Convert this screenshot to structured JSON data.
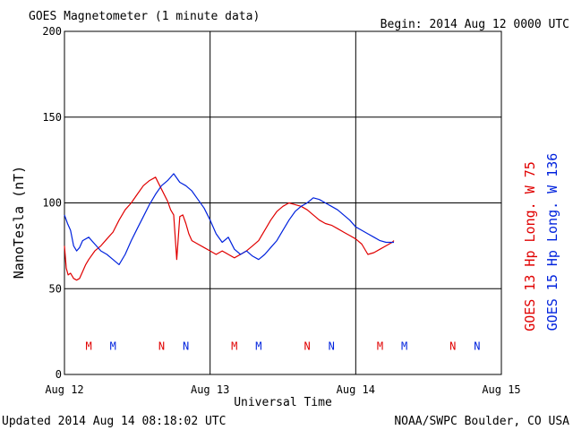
{
  "chart_data": {
    "type": "line",
    "title": "GOES Magnetometer (1 minute data)",
    "begin_label": "Begin:  2014 Aug 12 0000 UTC",
    "xlabel": "Universal Time",
    "ylabel": "NanoTesla (nT)",
    "footer_left": "Updated 2014 Aug 14 08:18:02 UTC",
    "footer_right": "NOAA/SWPC Boulder, CO USA",
    "x_unit": "hours since 2014 Aug 12 00:00 UTC",
    "xlim": [
      0,
      72
    ],
    "ylim": [
      0,
      200
    ],
    "x_ticks": [
      {
        "x": 0,
        "label": "Aug 12"
      },
      {
        "x": 24,
        "label": "Aug 13"
      },
      {
        "x": 48,
        "label": "Aug 14"
      },
      {
        "x": 72,
        "label": "Aug 15"
      }
    ],
    "y_ticks": [
      {
        "y": 0,
        "label": "0"
      },
      {
        "y": 50,
        "label": "50"
      },
      {
        "y": 100,
        "label": "100"
      },
      {
        "y": 150,
        "label": "150"
      },
      {
        "y": 200,
        "label": "200"
      }
    ],
    "grid": true,
    "series": [
      {
        "name": "GOES 13 Hp  Long. W 75",
        "color": "#e00000",
        "x": [
          0,
          0.3,
          0.6,
          1,
          1.5,
          2,
          2.5,
          3,
          3.5,
          4,
          5,
          6,
          7,
          8,
          9,
          10,
          11,
          12,
          13,
          14,
          15,
          16,
          17,
          17.5,
          18,
          18.5,
          19,
          19.5,
          20,
          20.5,
          21,
          22,
          23,
          24,
          25,
          26,
          27,
          28,
          29,
          30,
          31,
          32,
          33,
          34,
          35,
          36,
          37,
          38,
          39,
          40,
          41,
          42,
          43,
          44,
          45,
          46,
          47,
          48,
          49,
          50,
          51,
          52,
          53,
          54,
          54.3
        ],
        "values": [
          75,
          62,
          58,
          59,
          56,
          55,
          56,
          60,
          64,
          67,
          72,
          75,
          79,
          83,
          90,
          96,
          100,
          105,
          110,
          113,
          115,
          108,
          101,
          96,
          93,
          67,
          92,
          93,
          88,
          82,
          78,
          76,
          74,
          72,
          70,
          72,
          70,
          68,
          70,
          72,
          75,
          78,
          84,
          90,
          95,
          98,
          100,
          99,
          98,
          96,
          93,
          90,
          88,
          87,
          85,
          83,
          81,
          79,
          76,
          70,
          71,
          73,
          75,
          77,
          78
        ]
      },
      {
        "name": "GOES 15 Hp  Long. W 136",
        "color": "#0022dd",
        "x": [
          0,
          0.5,
          1,
          1.5,
          2,
          2.5,
          3,
          4,
          5,
          6,
          7,
          8,
          9,
          10,
          11,
          12,
          13,
          14,
          15,
          16,
          17,
          18,
          19,
          20,
          21,
          22,
          23,
          24,
          25,
          26,
          27,
          28,
          29,
          30,
          31,
          32,
          33,
          34,
          35,
          36,
          37,
          38,
          39,
          40,
          41,
          42,
          43,
          44,
          45,
          46,
          47,
          48,
          49,
          50,
          51,
          52,
          53,
          54,
          54.3
        ],
        "values": [
          93,
          88,
          84,
          75,
          72,
          74,
          78,
          80,
          76,
          72,
          70,
          67,
          64,
          70,
          78,
          85,
          92,
          99,
          105,
          110,
          113,
          117,
          112,
          110,
          107,
          102,
          97,
          90,
          82,
          77,
          80,
          73,
          70,
          72,
          69,
          67,
          70,
          74,
          78,
          84,
          90,
          95,
          98,
          100,
          103,
          102,
          100,
          98,
          96,
          93,
          90,
          86,
          84,
          82,
          80,
          78,
          77,
          77,
          77
        ]
      }
    ],
    "right_labels": [
      {
        "text": "GOES 13 Hp  Long. W 75",
        "color": "#e00000"
      },
      {
        "text": "GOES 15 Hp  Long. W 136",
        "color": "#0022dd"
      }
    ],
    "markers_y": 17,
    "markers": [
      {
        "x": 4,
        "label": "M",
        "color": "#e00000"
      },
      {
        "x": 8,
        "label": "M",
        "color": "#0022dd"
      },
      {
        "x": 16,
        "label": "N",
        "color": "#e00000"
      },
      {
        "x": 20,
        "label": "N",
        "color": "#0022dd"
      },
      {
        "x": 28,
        "label": "M",
        "color": "#e00000"
      },
      {
        "x": 32,
        "label": "M",
        "color": "#0022dd"
      },
      {
        "x": 40,
        "label": "N",
        "color": "#e00000"
      },
      {
        "x": 44,
        "label": "N",
        "color": "#0022dd"
      },
      {
        "x": 52,
        "label": "M",
        "color": "#e00000"
      },
      {
        "x": 56,
        "label": "M",
        "color": "#0022dd"
      },
      {
        "x": 64,
        "label": "N",
        "color": "#e00000"
      },
      {
        "x": 68,
        "label": "N",
        "color": "#0022dd"
      }
    ]
  }
}
